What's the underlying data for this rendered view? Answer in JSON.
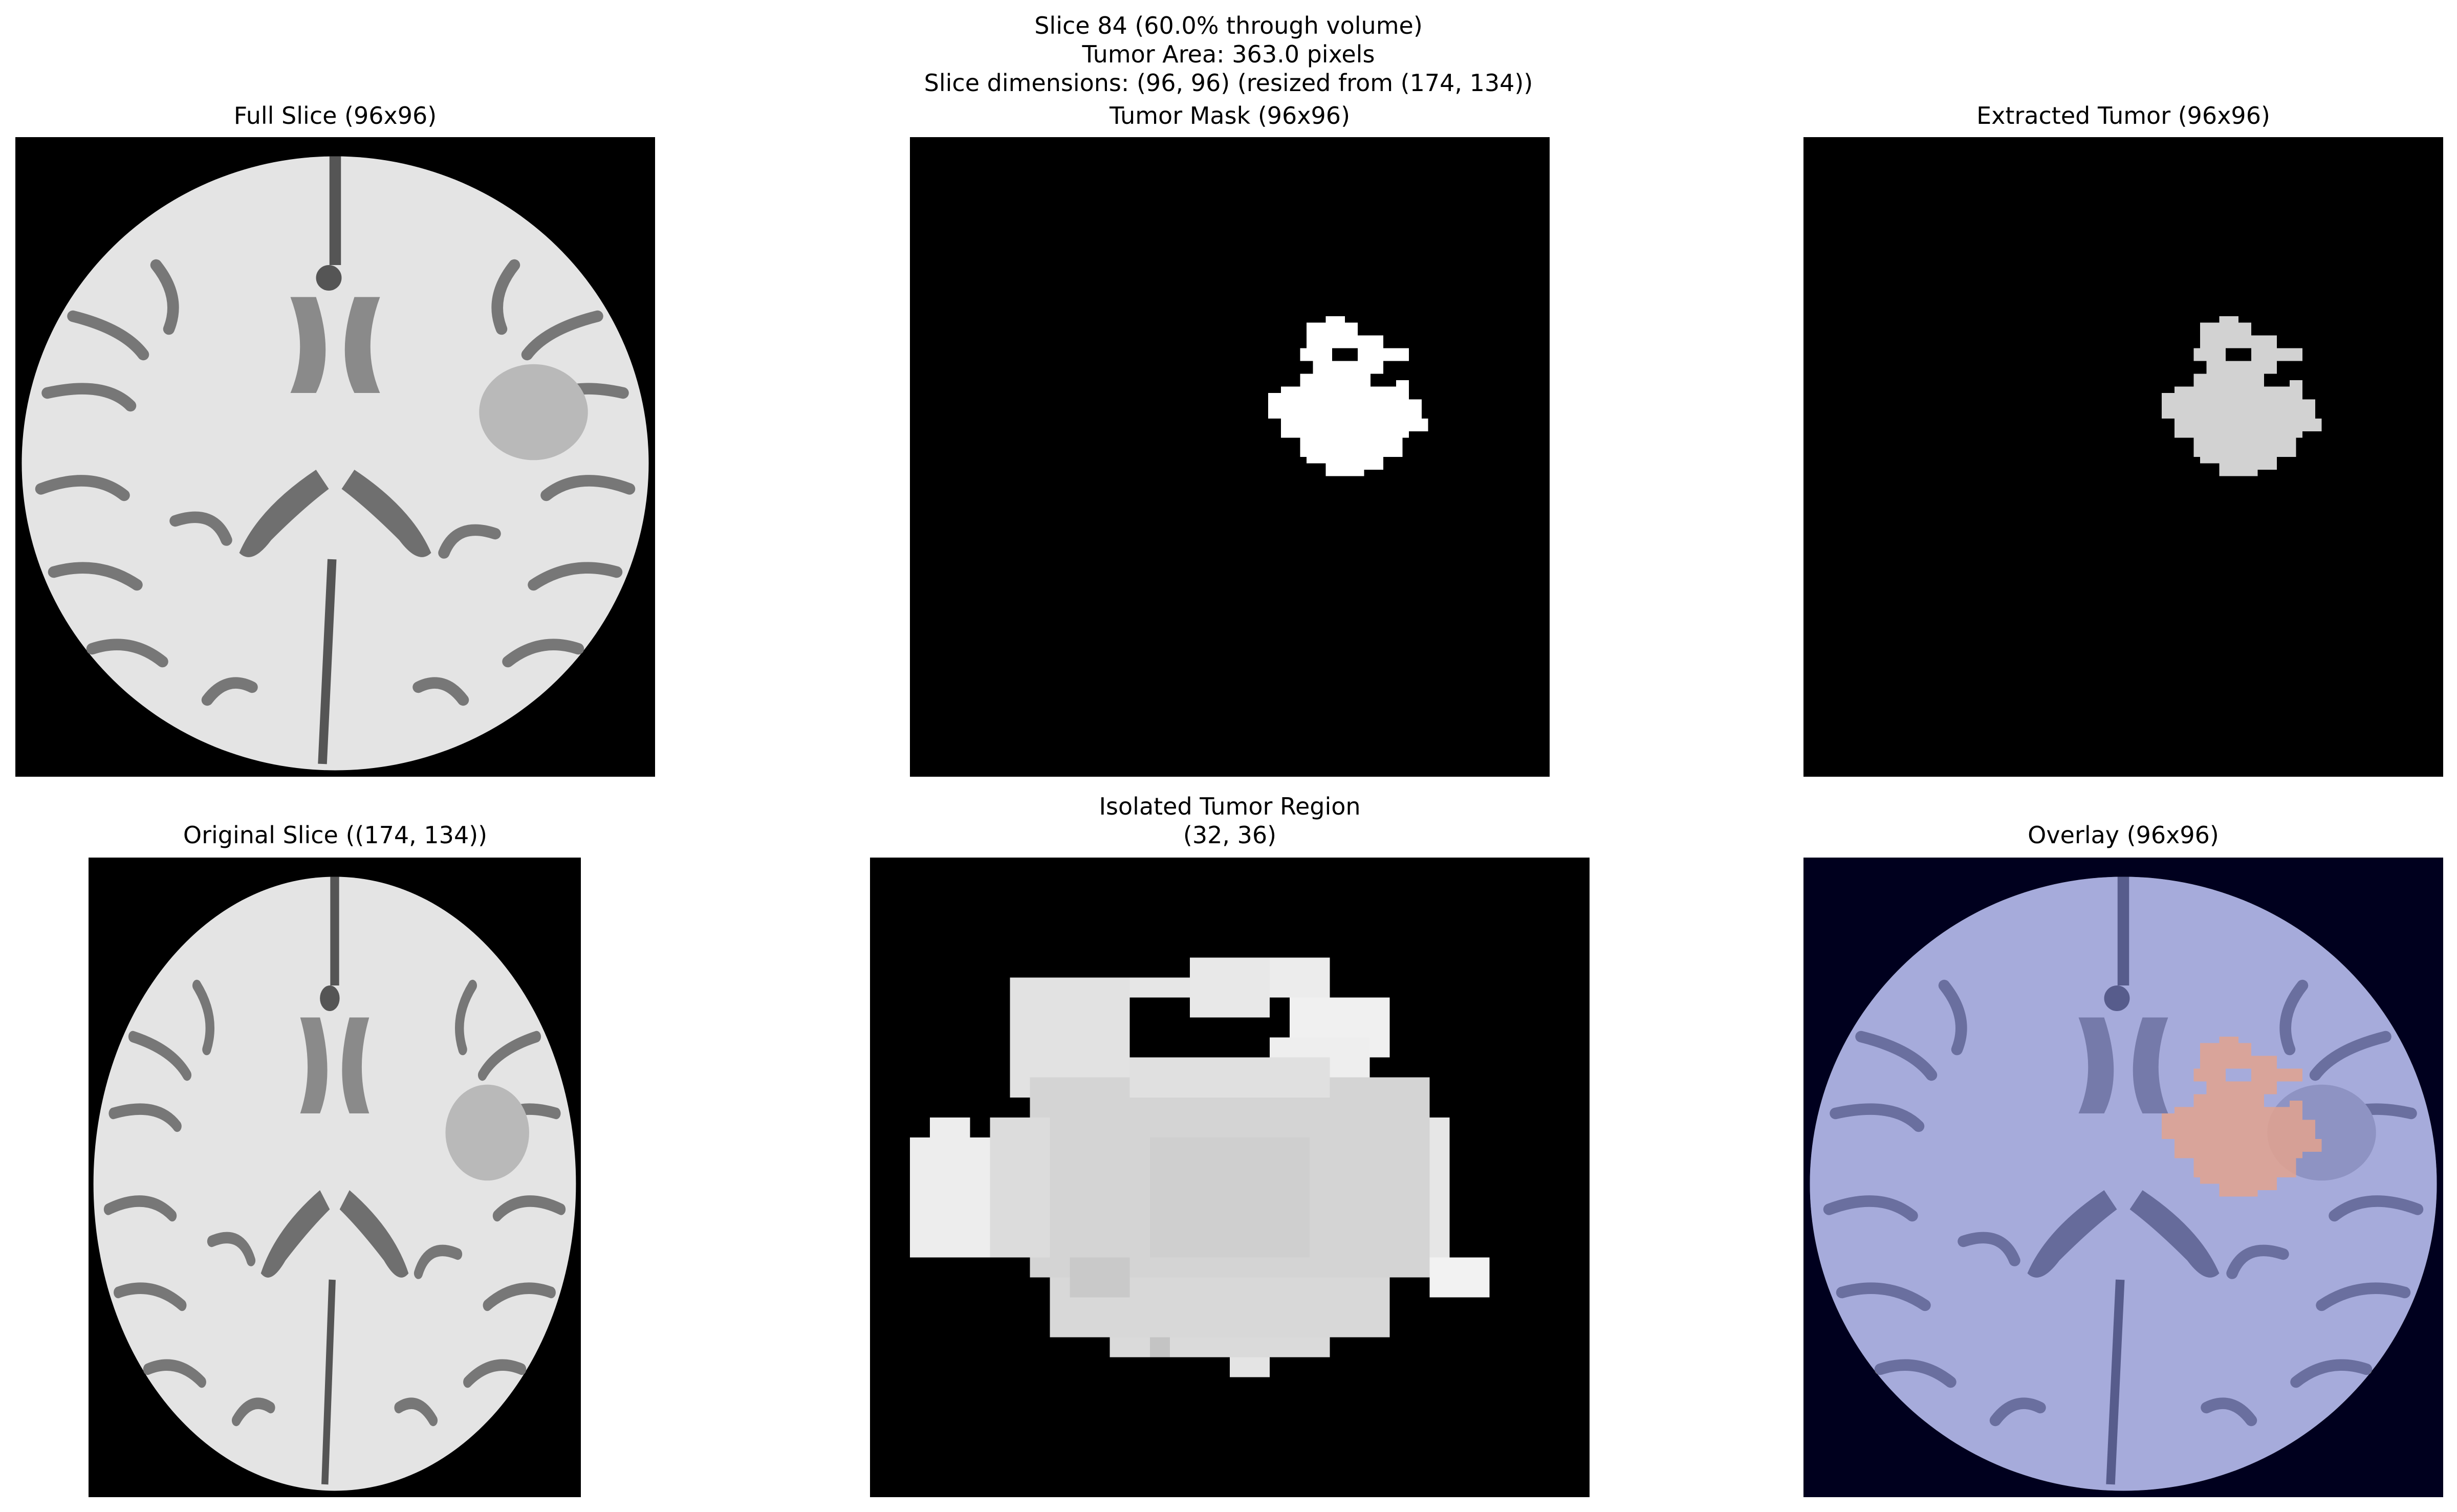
{
  "figure": {
    "suptitle_lines": [
      "Slice 84 (60.0% through volume)",
      "Tumor Area: 363.0 pixels",
      "Slice dimensions: (96, 96) (resized from (174, 134))"
    ]
  },
  "panels": {
    "full_slice": {
      "title": "Full Slice (96x96)"
    },
    "tumor_mask": {
      "title": "Tumor Mask (96x96)"
    },
    "extracted_tumor": {
      "title": "Extracted Tumor (96x96)"
    },
    "original_slice": {
      "title": "Original Slice ((174, 134))"
    },
    "isolated_region": {
      "title_lines": [
        "Isolated Tumor Region",
        "(32, 36)"
      ]
    },
    "overlay": {
      "title": "Overlay (96x96)"
    }
  },
  "colors": {
    "background": "#000000",
    "brain": "#e6e6e6",
    "tumor_gray": "#cfcfcf",
    "overlay_tint": "#aab0e6",
    "overlay_tumor": "#e3a38f",
    "mask": "#ffffff"
  }
}
